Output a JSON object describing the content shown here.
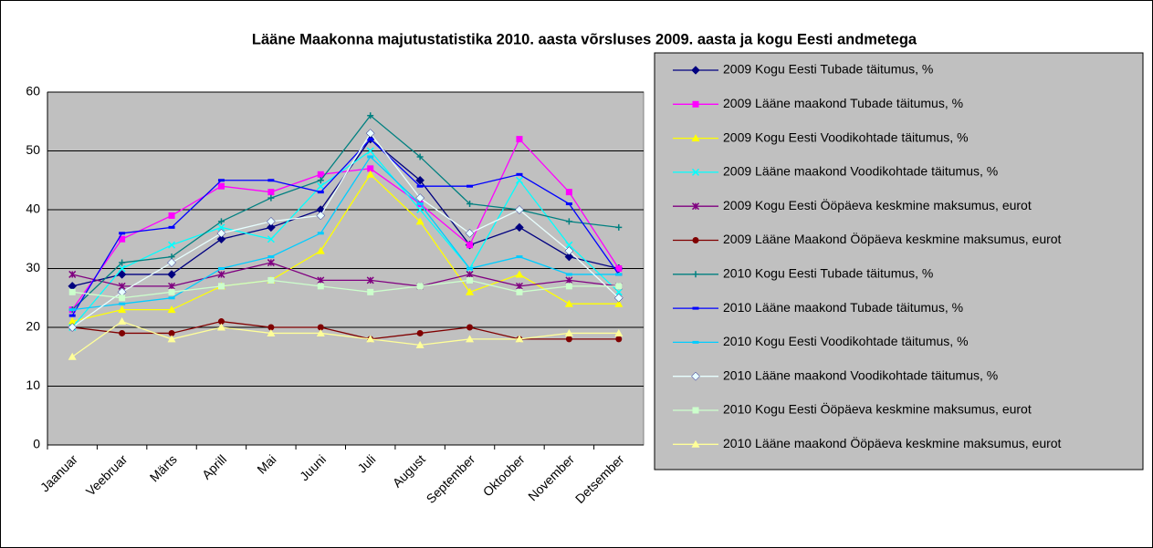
{
  "chart_data": {
    "type": "line",
    "title": "Lääne Maakonna majutustatistika 2010. aasta võrsluses 2009. aasta ja kogu Eesti andmetega",
    "categories": [
      "Jaanuar",
      "Veebruar",
      "Märts",
      "Aprill",
      "Mai",
      "Juuni",
      "Juli",
      "August",
      "September",
      "Oktoober",
      "November",
      "Detsember"
    ],
    "ylim": [
      0,
      60
    ],
    "yticks": [
      0,
      10,
      20,
      30,
      40,
      50,
      60
    ],
    "grid": true,
    "legend": "right",
    "series": [
      {
        "name": "2009 Kogu Eesti Tubade täitumus, %",
        "color": "#000080",
        "marker": "diamond",
        "values": [
          27,
          29,
          29,
          35,
          37,
          40,
          52,
          45,
          34,
          37,
          32,
          30
        ]
      },
      {
        "name": "2009 Lääne maakond Tubade täitumus, %",
        "color": "#FF00FF",
        "marker": "square",
        "values": [
          23,
          35,
          39,
          44,
          43,
          46,
          47,
          41,
          34,
          52,
          43,
          30
        ]
      },
      {
        "name": "2009 Kogu Eesti Voodikohtade täitumus, %",
        "color": "#FFFF00",
        "marker": "triangle",
        "values": [
          21,
          23,
          23,
          27,
          28,
          33,
          46,
          38,
          26,
          29,
          24,
          24
        ]
      },
      {
        "name": "2009 Lääne maakond Voodikohtade täitumus, %",
        "color": "#00FFFF",
        "marker": "x",
        "values": [
          20,
          30,
          34,
          37,
          35,
          44,
          50,
          40,
          30,
          45,
          34,
          26
        ]
      },
      {
        "name": "2009 Kogu Eesti Ööpäeva keskmine maksumus, eurot",
        "color": "#800080",
        "marker": "star",
        "values": [
          29,
          27,
          27,
          29,
          31,
          28,
          28,
          27,
          29,
          27,
          28,
          27
        ]
      },
      {
        "name": "2009 Lääne Maakond Ööpäeva keskmine maksumus, eurot",
        "color": "#800000",
        "marker": "circle",
        "values": [
          20,
          19,
          19,
          21,
          20,
          20,
          18,
          19,
          20,
          18,
          18,
          18
        ]
      },
      {
        "name": "2010 Kogu Eesti Tubade täitumus, %",
        "color": "#008080",
        "marker": "plus",
        "values": [
          23,
          31,
          32,
          38,
          42,
          45,
          56,
          49,
          41,
          40,
          38,
          37
        ]
      },
      {
        "name": "2010 Lääne maakond Tubade täitumus, %",
        "color": "#0000FF",
        "marker": "dash",
        "values": [
          22,
          36,
          37,
          45,
          45,
          43,
          52,
          44,
          44,
          46,
          41,
          29
        ]
      },
      {
        "name": "2010 Kogu Eesti Voodikohtade täitumus, %",
        "color": "#00CCFF",
        "marker": "dash",
        "values": [
          23,
          24,
          25,
          30,
          32,
          36,
          49,
          41,
          30,
          32,
          29,
          29
        ]
      },
      {
        "name": "2010 Lääne maakond Voodikohtade täitumus, %",
        "color": "#E8FFFF",
        "marker": "diamond",
        "values": [
          20,
          26,
          31,
          36,
          38,
          39,
          53,
          42,
          36,
          40,
          33,
          25
        ]
      },
      {
        "name": "2010 Kogu Eesti Ööpäeva keskmine maksumus, eurot",
        "color": "#CCFFCC",
        "marker": "square",
        "values": [
          26,
          25,
          26,
          27,
          28,
          27,
          26,
          27,
          28,
          26,
          27,
          27
        ]
      },
      {
        "name": "2010 Lääne maakond Ööpäeva keskmine maksumus, eurot",
        "color": "#FFFF99",
        "marker": "triangle",
        "values": [
          15,
          21,
          18,
          20,
          19,
          19,
          18,
          17,
          18,
          18,
          19,
          19
        ]
      }
    ]
  }
}
